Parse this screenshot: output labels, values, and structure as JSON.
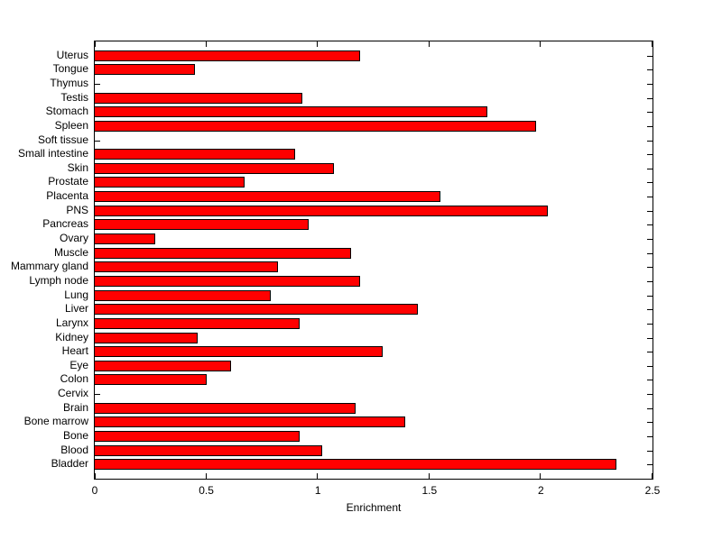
{
  "chart_data": {
    "type": "bar",
    "orientation": "horizontal",
    "title": "",
    "xlabel": "Enrichment",
    "ylabel": "",
    "xlim": [
      0,
      2.5
    ],
    "xticks": [
      "0",
      "0.5",
      "1",
      "1.5",
      "2",
      "2.5"
    ],
    "xtick_values": [
      0,
      0.5,
      1,
      1.5,
      2,
      2.5
    ],
    "grid": false,
    "legend": "none",
    "bar_color": "#FF0000",
    "bar_edge_color": "#000000",
    "axis_color": "#000000",
    "background_color": "#FFFFFF",
    "categories": [
      "Uterus",
      "Tongue",
      "Thymus",
      "Testis",
      "Stomach",
      "Spleen",
      "Soft tissue",
      "Small intestine",
      "Skin",
      "Prostate",
      "Placenta",
      "PNS",
      "Pancreas",
      "Ovary",
      "Muscle",
      "Mammary gland",
      "Lymph node",
      "Lung",
      "Liver",
      "Larynx",
      "Kidney",
      "Heart",
      "Eye",
      "Colon",
      "Cervix",
      "Brain",
      "Bone marrow",
      "Bone",
      "Blood",
      "Bladder"
    ],
    "values": [
      1.19,
      0.45,
      0,
      0.93,
      1.76,
      1.98,
      0,
      0.9,
      1.07,
      0.67,
      1.55,
      2.03,
      0.96,
      0.27,
      1.15,
      0.82,
      1.19,
      0.79,
      1.45,
      0.92,
      0.46,
      1.29,
      0.61,
      0.5,
      0,
      1.17,
      1.39,
      0.92,
      1.02,
      2.34
    ]
  }
}
